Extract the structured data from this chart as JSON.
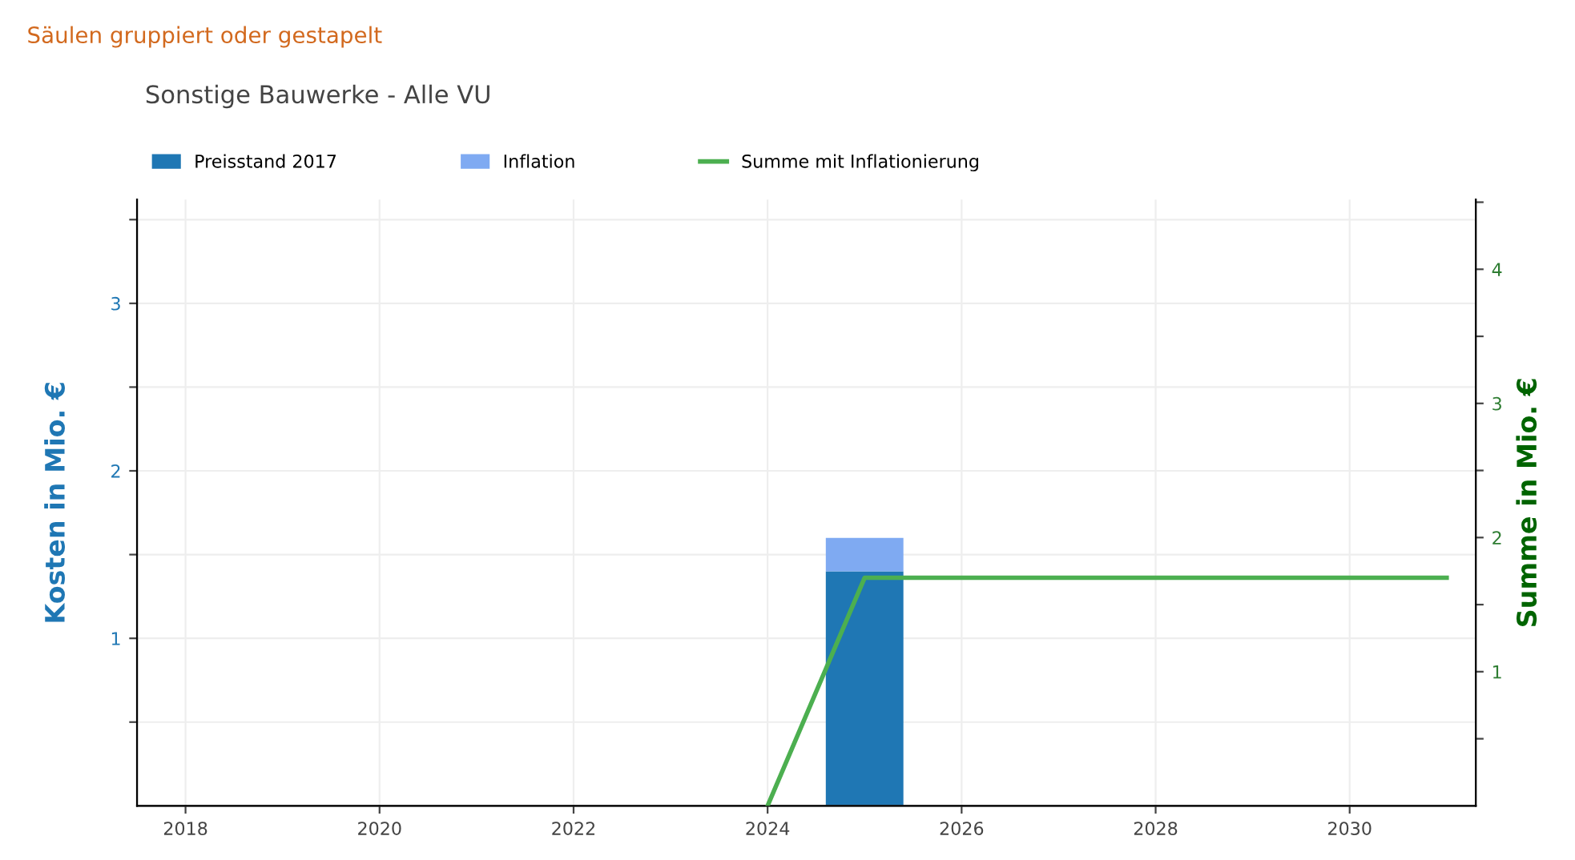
{
  "chart_data": {
    "type": "bar",
    "title": "Sonstige Bauwerke - Alle VU",
    "annotations": [
      "Säulen gruppiert oder gestapelt"
    ],
    "ylabel": "Kosten in Mio. €",
    "y2label": "Summe in Mio. €",
    "x": [
      2025
    ],
    "stacked": true,
    "series": [
      {
        "name": "Preisstand 2017",
        "color": "#1f77b4",
        "values": [
          1.4
        ]
      },
      {
        "name": "Inflation",
        "color": "#7faaf2",
        "values": [
          0.2
        ]
      },
      {
        "name": "Summe mit Inflationierung",
        "type": "line",
        "axis": "y2",
        "color": "#4caf50",
        "x": [
          2024,
          2025,
          2026,
          2027,
          2028,
          2029,
          2030,
          2031
        ],
        "values": [
          0,
          1.7,
          1.7,
          1.7,
          1.7,
          1.7,
          1.7,
          1.7
        ]
      }
    ],
    "xlim": [
      2017.5,
      2031.3
    ],
    "xticks": [
      2018,
      2020,
      2022,
      2024,
      2026,
      2028,
      2030
    ],
    "ylim": [
      0,
      3.62
    ],
    "yticks": [
      {
        "value": 0.5,
        "label": null
      },
      1,
      {
        "value": 1.5,
        "label": null
      },
      2,
      {
        "value": 2.5,
        "label": null
      },
      3,
      {
        "value": 3.5,
        "label": null
      }
    ],
    "y2lim": [
      0,
      4.52
    ],
    "y2ticks": [
      {
        "value": 0.5,
        "label": null
      },
      1,
      {
        "value": 1.5,
        "label": null
      },
      2,
      {
        "value": 2.5,
        "label": null
      },
      3,
      {
        "value": 3.5,
        "label": null
      },
      4,
      {
        "value": 4.5,
        "label": null
      }
    ],
    "grid": true,
    "legend": "top"
  }
}
